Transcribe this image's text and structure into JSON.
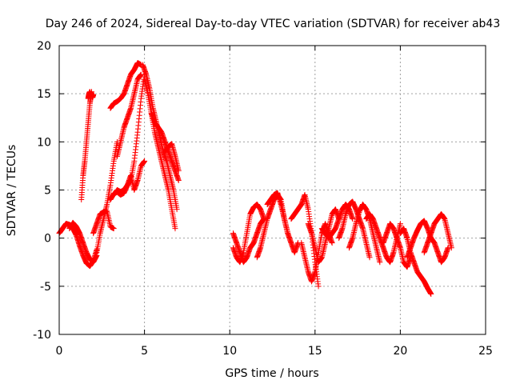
{
  "chart_data": {
    "type": "scatter",
    "title": "Day 246 of 2024, Sidereal Day-to-day VTEC variation (SDTVAR) for receiver ab43",
    "xlabel": "GPS time / hours",
    "ylabel": "SDTVAR / TECUs",
    "xlim": [
      0,
      25
    ],
    "ylim": [
      -10,
      20
    ],
    "x_ticks": [
      0,
      5,
      10,
      15,
      20,
      25
    ],
    "x_tick_labels": [
      "0",
      "5",
      "10",
      "15",
      "20",
      "25"
    ],
    "y_ticks": [
      -10,
      -5,
      0,
      5,
      10,
      15,
      20
    ],
    "y_tick_labels": [
      "-10",
      "-5",
      "0",
      "5",
      "10",
      "15",
      "20"
    ],
    "grid": true,
    "marker": "+",
    "color": "#ff0000",
    "series": [
      {
        "name": "SDTVAR",
        "segments": [
          {
            "x": [
              0.0,
              0.2,
              0.4,
              0.6,
              0.8,
              1.0,
              1.2,
              1.4,
              1.6,
              1.8,
              2.0,
              2.2
            ],
            "y": [
              0.5,
              1.0,
              1.5,
              1.4,
              1.0,
              0.3,
              -0.8,
              -1.8,
              -2.6,
              -2.9,
              -2.4,
              -1.2
            ]
          },
          {
            "x": [
              0.6,
              0.8,
              1.0,
              1.2,
              1.4,
              1.6,
              1.8,
              2.0,
              2.2
            ],
            "y": [
              1.0,
              1.6,
              1.2,
              0.5,
              -0.5,
              -1.5,
              -2.2,
              -2.5,
              -1.8
            ]
          },
          {
            "x": [
              1.3,
              1.4,
              1.5,
              1.6,
              1.7,
              1.8,
              1.9
            ],
            "y": [
              4.0,
              6.5,
              8.0,
              10.0,
              12.0,
              14.0,
              15.2
            ]
          },
          {
            "x": [
              1.7,
              1.75,
              1.8,
              1.85,
              1.9,
              1.95,
              2.0
            ],
            "y": [
              14.5,
              15.0,
              15.2,
              14.8,
              15.0,
              14.6,
              14.9
            ]
          },
          {
            "x": [
              2.0,
              2.2,
              2.4,
              2.6,
              2.8,
              3.0,
              3.2
            ],
            "y": [
              0.5,
              1.5,
              2.5,
              2.7,
              2.8,
              1.2,
              1.0
            ]
          },
          {
            "x": [
              2.2,
              2.4,
              2.6,
              2.8,
              3.0,
              3.2,
              3.4
            ],
            "y": [
              -1.5,
              0.5,
              2.0,
              3.5,
              5.5,
              8.0,
              10.0
            ]
          },
          {
            "x": [
              3.2,
              3.4,
              3.6,
              3.8,
              4.0,
              4.2,
              4.4,
              4.6,
              4.8,
              5.0
            ],
            "y": [
              4.5,
              5.0,
              4.8,
              5.0,
              5.5,
              6.0,
              8.0,
              11.0,
              14.5,
              17.0
            ]
          },
          {
            "x": [
              3.0,
              3.2,
              3.4,
              3.6,
              3.8,
              4.0,
              4.2,
              4.4,
              4.6,
              4.8
            ],
            "y": [
              13.5,
              14.0,
              14.2,
              14.5,
              15.0,
              16.0,
              17.0,
              17.5,
              18.2,
              18.0
            ]
          },
          {
            "x": [
              3.4,
              3.6,
              3.8,
              4.0,
              4.2,
              4.4,
              4.6,
              4.8
            ],
            "y": [
              8.5,
              10.0,
              11.5,
              12.5,
              13.5,
              15.0,
              16.5,
              17.0
            ]
          },
          {
            "x": [
              3.0,
              3.2,
              3.4,
              3.6,
              3.8,
              4.0,
              4.2,
              4.4,
              4.6,
              4.8,
              5.0
            ],
            "y": [
              4.0,
              4.6,
              4.8,
              4.5,
              4.7,
              5.5,
              6.5,
              5.0,
              6.0,
              7.5,
              8.0
            ]
          },
          {
            "x": [
              4.9,
              5.1,
              5.3,
              5.5,
              5.7,
              5.9,
              6.1,
              6.3,
              6.5,
              6.7,
              6.9
            ],
            "y": [
              18.0,
              17.0,
              15.5,
              13.5,
              12.0,
              10.5,
              9.0,
              8.0,
              6.5,
              5.0,
              3.0
            ]
          },
          {
            "x": [
              5.0,
              5.2,
              5.4,
              5.6,
              5.8,
              6.0,
              6.2,
              6.4,
              6.6,
              6.8
            ],
            "y": [
              16.5,
              15.0,
              13.0,
              11.0,
              9.5,
              8.0,
              6.5,
              5.0,
              3.0,
              1.0
            ]
          },
          {
            "x": [
              5.4,
              5.6,
              5.8,
              6.0,
              6.2,
              6.4,
              6.6,
              6.8,
              7.0
            ],
            "y": [
              13.0,
              12.0,
              11.5,
              11.0,
              10.0,
              9.0,
              8.0,
              7.0,
              6.0
            ]
          },
          {
            "x": [
              6.2,
              6.4,
              6.6,
              6.8,
              7.0
            ],
            "y": [
              9.0,
              9.5,
              9.8,
              8.5,
              7.0
            ]
          },
          {
            "x": [
              10.2,
              10.4,
              10.6,
              10.8,
              11.0,
              11.2,
              11.4,
              11.6,
              11.8,
              12.0
            ],
            "y": [
              -1.0,
              -2.0,
              -2.5,
              -1.5,
              0.5,
              2.5,
              3.2,
              3.5,
              3.0,
              2.0
            ]
          },
          {
            "x": [
              10.2,
              10.4,
              10.6,
              10.8,
              11.0,
              11.2,
              11.4,
              11.6,
              11.8,
              12.0
            ],
            "y": [
              0.5,
              -0.5,
              -1.5,
              -2.5,
              -2.0,
              -1.0,
              -0.5,
              0.5,
              1.5,
              2.0
            ]
          },
          {
            "x": [
              11.6,
              11.8,
              12.0,
              12.2,
              12.4,
              12.6,
              12.8,
              13.0,
              13.2,
              13.4
            ],
            "y": [
              -2.0,
              -1.0,
              0.5,
              2.0,
              3.0,
              4.0,
              4.5,
              4.0,
              2.0,
              0.5
            ]
          },
          {
            "x": [
              12.2,
              12.4,
              12.6,
              12.8,
              13.0,
              13.2,
              13.4,
              13.6,
              13.8,
              14.0
            ],
            "y": [
              3.5,
              4.0,
              4.5,
              4.7,
              3.5,
              2.0,
              0.5,
              -0.5,
              -1.5,
              -0.5
            ]
          },
          {
            "x": [
              13.6,
              13.8,
              14.0,
              14.2,
              14.4,
              14.6,
              14.8,
              15.0,
              15.2
            ],
            "y": [
              2.0,
              2.5,
              3.0,
              3.5,
              4.5,
              3.0,
              0.5,
              -2.5,
              -5.0
            ]
          },
          {
            "x": [
              14.2,
              14.4,
              14.6,
              14.8,
              15.0,
              15.2,
              15.4,
              15.6,
              15.8,
              16.0
            ],
            "y": [
              -0.5,
              -2.0,
              -3.5,
              -4.5,
              -3.5,
              -1.5,
              0.5,
              1.5,
              0.5,
              -0.5
            ]
          },
          {
            "x": [
              14.6,
              14.8,
              15.0,
              15.2,
              15.4,
              15.6,
              15.8,
              16.0,
              16.2,
              16.4
            ],
            "y": [
              1.5,
              0.5,
              -1.0,
              -2.5,
              -2.0,
              -0.5,
              1.0,
              2.5,
              3.0,
              2.0
            ]
          },
          {
            "x": [
              15.4,
              15.6,
              15.8,
              16.0,
              16.2,
              16.4,
              16.6,
              16.8,
              17.0,
              17.2
            ],
            "y": [
              1.0,
              0.5,
              0.0,
              0.5,
              1.0,
              2.0,
              3.0,
              3.5,
              3.0,
              2.0
            ]
          },
          {
            "x": [
              16.4,
              16.6,
              16.8,
              17.0,
              17.2,
              17.4,
              17.6,
              17.8,
              18.0,
              18.2
            ],
            "y": [
              0.0,
              1.0,
              2.5,
              3.5,
              3.8,
              3.0,
              2.0,
              1.0,
              -0.5,
              -2.0
            ]
          },
          {
            "x": [
              17.0,
              17.2,
              17.4,
              17.6,
              17.8,
              18.0,
              18.2,
              18.4,
              18.6,
              18.8
            ],
            "y": [
              -1.0,
              0.0,
              1.5,
              2.8,
              3.5,
              3.0,
              2.0,
              0.5,
              -1.0,
              -2.5
            ]
          },
          {
            "x": [
              18.0,
              18.2,
              18.4,
              18.6,
              18.8,
              19.0,
              19.2,
              19.4,
              19.6,
              19.8,
              20.0
            ],
            "y": [
              2.0,
              2.5,
              2.0,
              1.0,
              0.0,
              -1.0,
              -2.0,
              -2.5,
              -1.5,
              0.0,
              1.5
            ]
          },
          {
            "x": [
              19.0,
              19.2,
              19.4,
              19.6,
              19.8,
              20.0,
              20.2,
              20.4,
              20.6
            ],
            "y": [
              -0.5,
              0.5,
              1.5,
              1.0,
              0.0,
              -1.0,
              -2.5,
              -3.0,
              -2.0
            ]
          },
          {
            "x": [
              20.0,
              20.2,
              20.4,
              20.6,
              20.8,
              21.0,
              21.2,
              21.4,
              21.6,
              21.8
            ],
            "y": [
              0.5,
              1.0,
              0.0,
              -1.5,
              -2.5,
              -3.5,
              -4.0,
              -4.5,
              -5.2,
              -5.8
            ]
          },
          {
            "x": [
              20.4,
              20.6,
              20.8,
              21.0,
              21.2,
              21.4,
              21.6,
              21.8,
              22.0,
              22.2,
              22.4,
              22.6,
              22.8
            ],
            "y": [
              -2.0,
              -1.0,
              0.0,
              0.8,
              1.5,
              1.8,
              1.0,
              0.0,
              -0.5,
              -1.5,
              -2.5,
              -2.0,
              -1.0
            ]
          },
          {
            "x": [
              21.4,
              21.6,
              21.8,
              22.0,
              22.2,
              22.4,
              22.6,
              22.8,
              23.0
            ],
            "y": [
              -1.5,
              -0.5,
              0.5,
              1.5,
              2.0,
              2.5,
              2.0,
              0.5,
              -1.0
            ]
          }
        ]
      }
    ]
  }
}
